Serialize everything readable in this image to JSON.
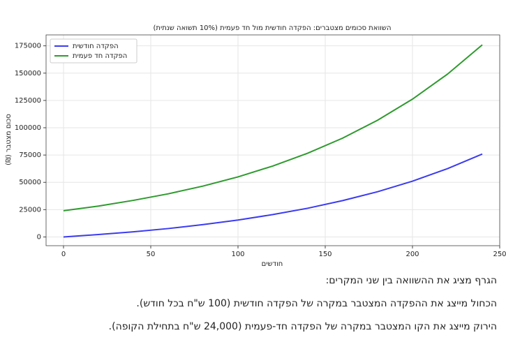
{
  "chart_data": {
    "type": "line",
    "title": "(תיתנש האושת 10%) תימעפ דח לומ תישדוח הדקפה :םירבטצמ םימוכס תאוושה",
    "x_label": "םישדוח",
    "y_label": "(₪) רבטצמ םוכס",
    "x": [
      0,
      20,
      40,
      60,
      80,
      100,
      120,
      140,
      160,
      180,
      200,
      220,
      240
    ],
    "series": [
      {
        "name": "תישדוח הדקפה",
        "color": "#3b3bf0",
        "values": [
          0,
          2200,
          4700,
          7700,
          11300,
          15500,
          20500,
          26300,
          33300,
          41400,
          51100,
          62500,
          75900
        ]
      },
      {
        "name": "תימעפ דח הדקפה",
        "color": "#2e9a2e",
        "values": [
          24000,
          28300,
          33500,
          39500,
          46600,
          55000,
          65000,
          76700,
          90500,
          106900,
          126200,
          149000,
          175900
        ]
      }
    ],
    "xlim": [
      -10,
      250
    ],
    "ylim": [
      -8000,
      185000
    ],
    "xticks": [
      0,
      50,
      100,
      150,
      200,
      250
    ],
    "yticks": [
      0,
      25000,
      50000,
      75000,
      100000,
      125000,
      150000,
      175000
    ],
    "grid": true,
    "legend": "upper left"
  },
  "notes": [
    "הגרף מציג את ההשוואה בין שני המקרים:",
    "הכחול מייצג את ההפקדה המצטבר במקרה של הפקדה חודשית (100 ש\"ח בכל חודש).",
    "הירוק מייצג את הקו המצטבר במקרה של הפקדה חד-פעמית (24,000 ש\"ח בתחילת הקופה)."
  ]
}
